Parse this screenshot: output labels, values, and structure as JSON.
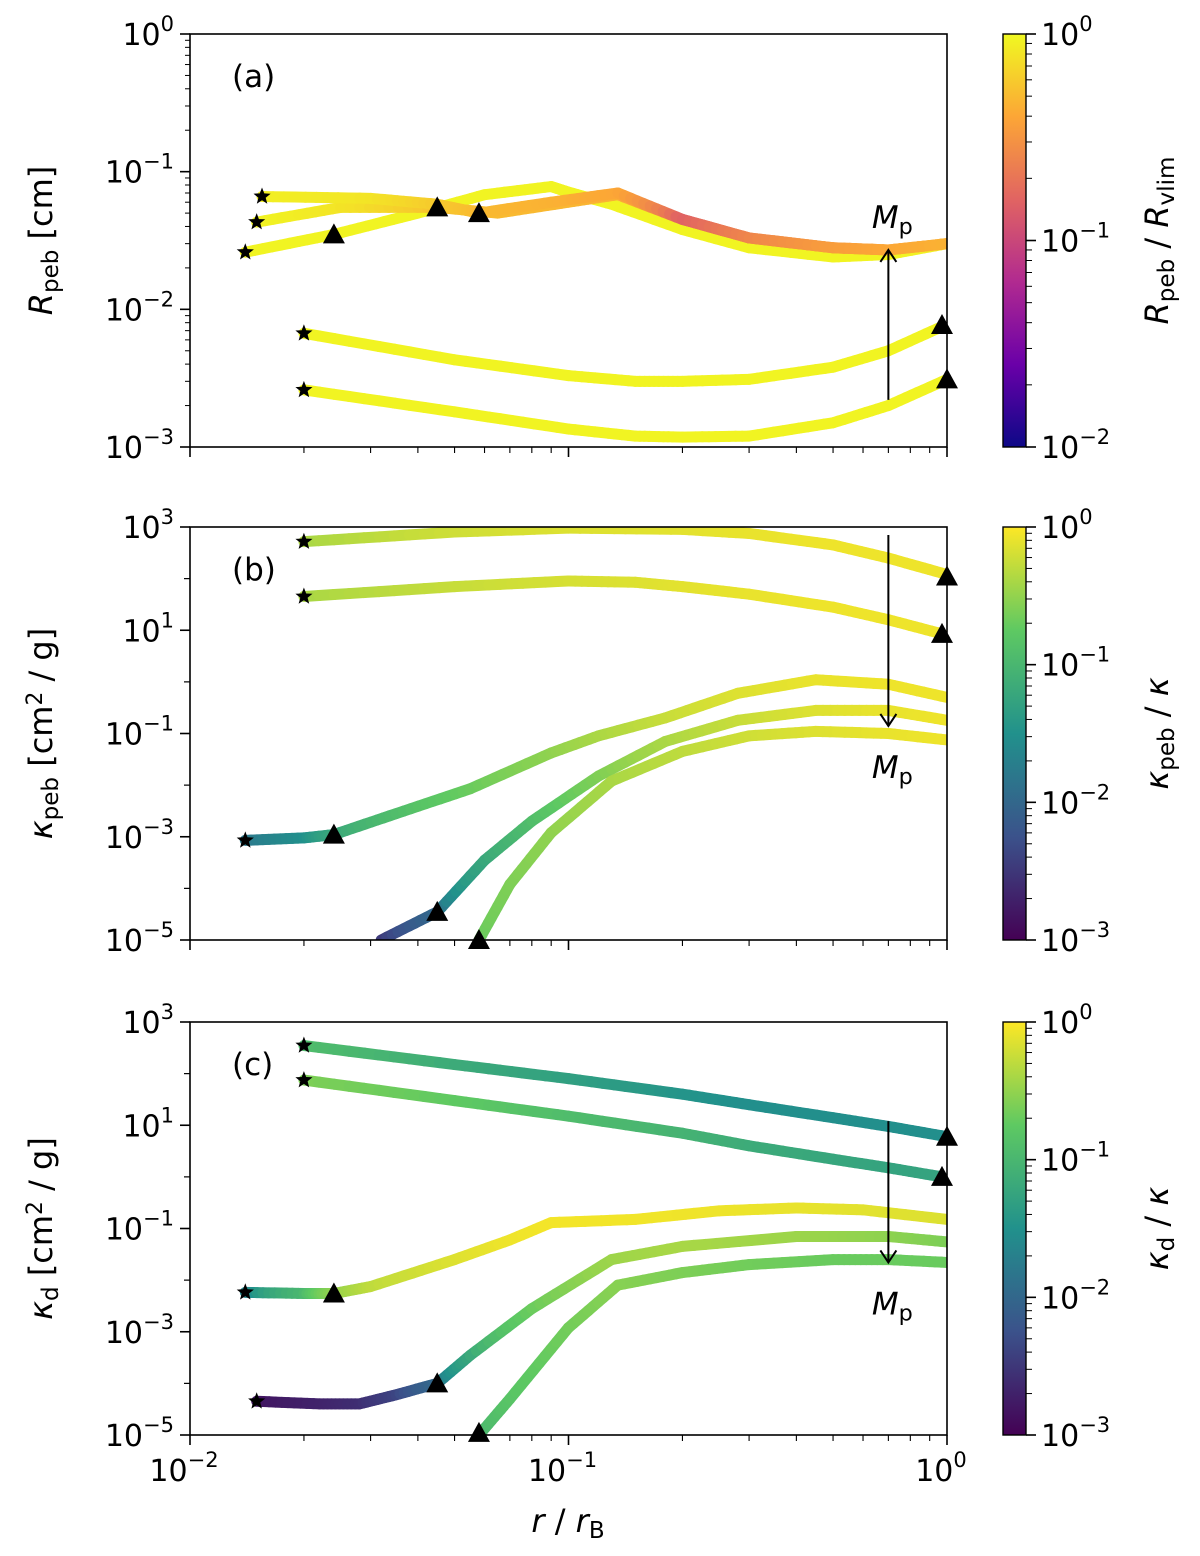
{
  "figure": {
    "xlabel": {
      "main": "r",
      "sep": " / ",
      "base": "r",
      "sub": "B"
    },
    "mp_label": {
      "main": "M",
      "sub": "p"
    }
  },
  "colormaps": {
    "plasma": [
      "#0d0887",
      "#6a00a8",
      "#b12a90",
      "#e16462",
      "#fca636",
      "#f0f921"
    ],
    "viridis": [
      "#440154",
      "#3b528b",
      "#21918c",
      "#5ec962",
      "#fde725"
    ]
  },
  "chart_data": [
    {
      "type": "line",
      "panel_label": "(a)",
      "ylabel": {
        "main": "R",
        "sub": "peb",
        "unit": " [cm]"
      },
      "clabel": {
        "main": "R",
        "sub1": "peb",
        "sep": " / ",
        "main2": "R",
        "sub2": "vlim"
      },
      "xscale": "log",
      "yscale": "log",
      "xlim": [
        0.01,
        1.0
      ],
      "ylim": [
        0.001,
        1.0
      ],
      "yticks": [
        -3,
        -2,
        -1,
        0
      ],
      "colormap": "plasma",
      "clim": [
        0.01,
        1.0
      ],
      "cticks": [
        -2,
        -1,
        0
      ],
      "arrow": {
        "x": 0.7,
        "from": 0.0022,
        "to": 0.027,
        "direction": "up"
      },
      "series": [
        {
          "x": [
            0.02,
            0.05,
            0.1,
            0.15,
            0.2,
            0.3,
            0.5,
            0.7,
            1.0
          ],
          "y": [
            0.0026,
            0.0018,
            0.00135,
            0.0012,
            0.00118,
            0.0012,
            0.0015,
            0.002,
            0.0031
          ],
          "c": [
            0.95,
            0.95,
            0.95,
            0.95,
            0.95,
            0.95,
            0.95,
            0.95,
            0.95
          ],
          "start_marker": [
            0.02,
            0.0026
          ],
          "end_marker": [
            1.0,
            0.0031
          ]
        },
        {
          "x": [
            0.02,
            0.05,
            0.1,
            0.15,
            0.2,
            0.3,
            0.5,
            0.7,
            0.97
          ],
          "y": [
            0.0067,
            0.0043,
            0.0033,
            0.003,
            0.003,
            0.0031,
            0.0038,
            0.005,
            0.0075
          ],
          "c": [
            0.95,
            0.95,
            0.95,
            0.95,
            0.95,
            0.95,
            0.95,
            0.95,
            0.95
          ],
          "start_marker": [
            0.02,
            0.0067
          ],
          "end_marker": [
            0.97,
            0.0077
          ]
        },
        {
          "x": [
            0.014,
            0.024,
            0.04,
            0.06,
            0.09,
            0.1,
            0.13,
            0.2,
            0.3,
            0.5,
            0.7,
            1.0
          ],
          "y": [
            0.026,
            0.035,
            0.05,
            0.068,
            0.078,
            0.071,
            0.058,
            0.038,
            0.028,
            0.024,
            0.025,
            0.03
          ],
          "c": [
            0.95,
            0.95,
            0.95,
            0.95,
            0.95,
            0.95,
            0.95,
            0.95,
            0.95,
            0.95,
            0.95,
            0.9
          ],
          "start_marker": [
            0.014,
            0.026
          ],
          "end_marker": [
            0.024,
            0.035
          ]
        },
        {
          "x": [
            0.015,
            0.025,
            0.045,
            0.065,
            0.1,
            0.135,
            0.2,
            0.3,
            0.5,
            0.7,
            1.0
          ],
          "y": [
            0.043,
            0.055,
            0.055,
            0.05,
            0.06,
            0.068,
            0.045,
            0.033,
            0.028,
            0.027,
            0.03
          ],
          "c": [
            0.95,
            0.8,
            0.55,
            0.5,
            0.48,
            0.45,
            0.15,
            0.25,
            0.35,
            0.4,
            0.45
          ],
          "start_marker": [
            0.015,
            0.043
          ],
          "end_marker": [
            0.045,
            0.055
          ]
        },
        {
          "x": [
            0.0155,
            0.03,
            0.045,
            0.058,
            0.09,
            0.135,
            0.2,
            0.3,
            0.5,
            0.7,
            1.0
          ],
          "y": [
            0.066,
            0.064,
            0.058,
            0.05,
            0.06,
            0.07,
            0.045,
            0.033,
            0.028,
            0.027,
            0.03
          ],
          "c": [
            0.9,
            0.8,
            0.6,
            0.5,
            0.45,
            0.4,
            0.15,
            0.25,
            0.35,
            0.4,
            0.45
          ],
          "start_marker": [
            0.0155,
            0.066
          ],
          "end_marker": [
            0.058,
            0.05
          ]
        }
      ]
    },
    {
      "type": "line",
      "panel_label": "(b)",
      "ylabel": {
        "main": "κ",
        "sub": "peb",
        "unit": " [cm",
        "sup": "2",
        "unit2": " / g]"
      },
      "clabel": {
        "main": "κ",
        "sub1": "peb",
        "sep": " / ",
        "main2": "κ",
        "sub2": ""
      },
      "xscale": "log",
      "yscale": "log",
      "xlim": [
        0.01,
        1.0
      ],
      "ylim": [
        1e-05,
        1000
      ],
      "yticks": [
        -5,
        -3,
        -1,
        1,
        3
      ],
      "colormap": "viridis",
      "clim": [
        0.001,
        1.0
      ],
      "cticks": [
        -3,
        -2,
        -1,
        0
      ],
      "arrow": {
        "x": 0.7,
        "from": 700,
        "to": 0.14,
        "direction": "down"
      },
      "series": [
        {
          "x": [
            0.02,
            0.05,
            0.1,
            0.2,
            0.3,
            0.5,
            0.7,
            1.0
          ],
          "y": [
            520,
            800,
            950,
            900,
            750,
            450,
            250,
            120
          ],
          "c": [
            0.4,
            0.6,
            0.7,
            0.75,
            0.8,
            0.85,
            0.85,
            0.85
          ],
          "start_marker": [
            0.02,
            520
          ],
          "end_marker": [
            1.0,
            110
          ]
        },
        {
          "x": [
            0.02,
            0.05,
            0.1,
            0.15,
            0.2,
            0.3,
            0.5,
            0.7,
            0.97
          ],
          "y": [
            45,
            70,
            90,
            85,
            70,
            50,
            28,
            16,
            8.5
          ],
          "c": [
            0.4,
            0.55,
            0.65,
            0.7,
            0.75,
            0.8,
            0.85,
            0.85,
            0.85
          ],
          "start_marker": [
            0.02,
            45
          ],
          "end_marker": [
            0.97,
            8.5
          ]
        },
        {
          "x": [
            0.014,
            0.02,
            0.024,
            0.035,
            0.055,
            0.09,
            0.12,
            0.18,
            0.28,
            0.45,
            0.7,
            1.0
          ],
          "y": [
            0.00085,
            0.00095,
            0.0011,
            0.0028,
            0.0085,
            0.042,
            0.09,
            0.2,
            0.6,
            1.1,
            0.9,
            0.5
          ],
          "c": [
            0.015,
            0.03,
            0.06,
            0.12,
            0.2,
            0.3,
            0.4,
            0.55,
            0.7,
            0.8,
            0.85,
            0.85
          ],
          "start_marker": [
            0.014,
            0.00085
          ],
          "end_marker": [
            0.024,
            0.0011
          ]
        },
        {
          "x": [
            0.032,
            0.045,
            0.06,
            0.08,
            0.12,
            0.18,
            0.28,
            0.45,
            0.7,
            1.0
          ],
          "y": [
            1e-05,
            3.5e-05,
            0.00035,
            0.002,
            0.015,
            0.07,
            0.18,
            0.28,
            0.28,
            0.18
          ],
          "c": [
            0.003,
            0.01,
            0.06,
            0.12,
            0.25,
            0.4,
            0.55,
            0.7,
            0.8,
            0.85
          ],
          "start_marker": null,
          "end_marker": [
            0.045,
            3.5e-05
          ]
        },
        {
          "x": [
            0.058,
            0.07,
            0.09,
            0.13,
            0.2,
            0.3,
            0.45,
            0.7,
            1.0
          ],
          "y": [
            1e-05,
            0.00012,
            0.0012,
            0.012,
            0.045,
            0.09,
            0.11,
            0.1,
            0.075
          ],
          "c": [
            0.2,
            0.25,
            0.3,
            0.4,
            0.5,
            0.6,
            0.7,
            0.8,
            0.85
          ],
          "start_marker": null,
          "end_marker": [
            0.058,
            1e-05
          ]
        }
      ]
    },
    {
      "type": "line",
      "panel_label": "(c)",
      "ylabel": {
        "main": "κ",
        "sub": "d",
        "unit": " [cm",
        "sup": "2",
        "unit2": " / g]"
      },
      "clabel": {
        "main": "κ",
        "sub1": "d",
        "sep": " / ",
        "main2": "κ",
        "sub2": ""
      },
      "xscale": "log",
      "yscale": "log",
      "xlim": [
        0.01,
        1.0
      ],
      "ylim": [
        1e-05,
        1000
      ],
      "yticks": [
        -5,
        -3,
        -1,
        1,
        3
      ],
      "colormap": "viridis",
      "clim": [
        0.001,
        1.0
      ],
      "cticks": [
        -3,
        -2,
        -1,
        0
      ],
      "arrow": {
        "x": 0.7,
        "from": 12,
        "to": 0.022,
        "direction": "down"
      },
      "series": [
        {
          "x": [
            0.02,
            0.05,
            0.1,
            0.2,
            0.3,
            0.5,
            0.7,
            1.0
          ],
          "y": [
            350,
            150,
            80,
            40,
            25,
            14,
            9.5,
            6
          ],
          "c": [
            0.12,
            0.07,
            0.05,
            0.035,
            0.03,
            0.03,
            0.03,
            0.03
          ],
          "start_marker": [
            0.02,
            350
          ],
          "end_marker": [
            1.0,
            6
          ]
        },
        {
          "x": [
            0.02,
            0.05,
            0.1,
            0.2,
            0.3,
            0.5,
            0.7,
            0.97
          ],
          "y": [
            75,
            30,
            15,
            7,
            4,
            2.2,
            1.5,
            1
          ],
          "c": [
            0.25,
            0.18,
            0.12,
            0.09,
            0.07,
            0.06,
            0.055,
            0.055
          ],
          "start_marker": [
            0.02,
            75
          ],
          "end_marker": [
            0.97,
            1
          ]
        },
        {
          "x": [
            0.014,
            0.02,
            0.024,
            0.03,
            0.05,
            0.07,
            0.09,
            0.15,
            0.25,
            0.4,
            0.6,
            1.0
          ],
          "y": [
            0.0058,
            0.0055,
            0.0055,
            0.0075,
            0.025,
            0.06,
            0.13,
            0.15,
            0.22,
            0.25,
            0.23,
            0.15
          ],
          "c": [
            0.02,
            0.1,
            0.3,
            0.5,
            0.7,
            0.85,
            0.9,
            0.88,
            0.85,
            0.8,
            0.75,
            0.7
          ],
          "start_marker": [
            0.014,
            0.0058
          ],
          "end_marker": [
            0.024,
            0.0055
          ]
        },
        {
          "x": [
            0.015,
            0.022,
            0.028,
            0.035,
            0.045,
            0.055,
            0.08,
            0.13,
            0.2,
            0.4,
            0.7,
            1.0
          ],
          "y": [
            4.5e-05,
            4e-05,
            4e-05,
            6e-05,
            0.0001,
            0.00035,
            0.0028,
            0.025,
            0.045,
            0.07,
            0.07,
            0.055
          ],
          "c": [
            0.0015,
            0.002,
            0.0025,
            0.004,
            0.01,
            0.06,
            0.2,
            0.35,
            0.4,
            0.35,
            0.3,
            0.25
          ],
          "start_marker": [
            0.015,
            4.5e-05
          ],
          "end_marker": [
            0.045,
            0.0001
          ]
        },
        {
          "x": [
            0.058,
            0.07,
            0.1,
            0.135,
            0.2,
            0.3,
            0.5,
            0.7,
            1.0
          ],
          "y": [
            1e-05,
            5e-05,
            0.0012,
            0.008,
            0.014,
            0.02,
            0.025,
            0.025,
            0.022
          ],
          "c": [
            0.1,
            0.15,
            0.22,
            0.28,
            0.25,
            0.22,
            0.2,
            0.2,
            0.2
          ],
          "start_marker": null,
          "end_marker": [
            0.058,
            1.1e-05
          ]
        }
      ]
    }
  ]
}
